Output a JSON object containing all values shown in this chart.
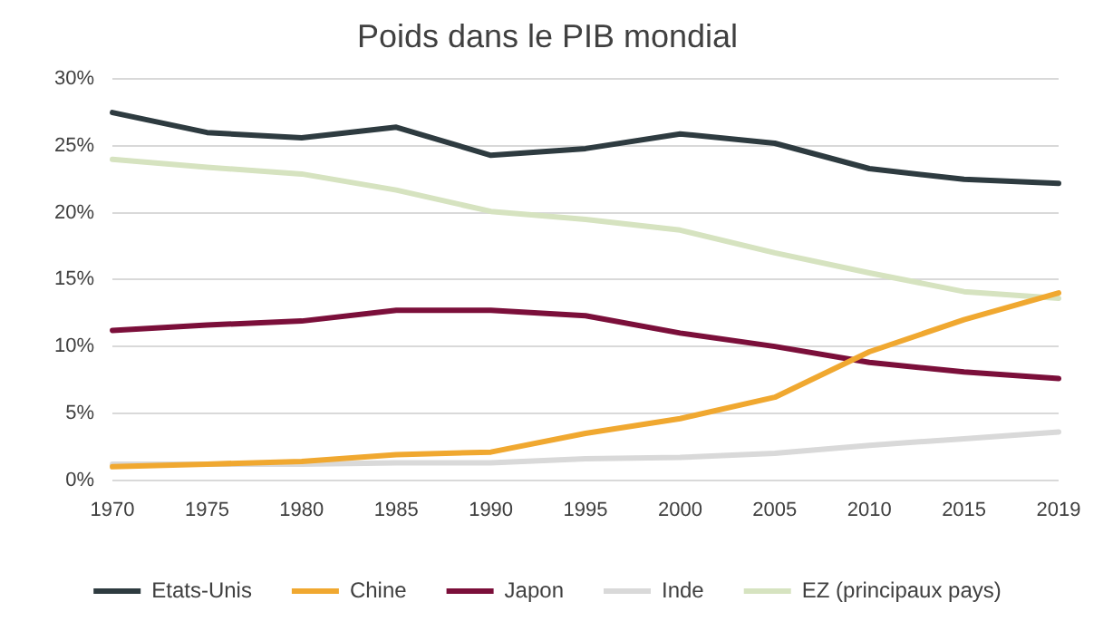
{
  "chart_data": {
    "type": "line",
    "title": "Poids dans le PIB mondial",
    "categories": [
      "1970",
      "1975",
      "1980",
      "1985",
      "1990",
      "1995",
      "2000",
      "2005",
      "2010",
      "2015",
      "2019"
    ],
    "series": [
      {
        "name": "Etats-Unis",
        "color": "#2e3b40",
        "values": [
          27.5,
          26.0,
          25.6,
          26.4,
          24.3,
          24.8,
          25.9,
          25.2,
          23.3,
          22.5,
          22.2
        ]
      },
      {
        "name": "Chine",
        "color": "#f0a830",
        "values": [
          1.0,
          1.2,
          1.4,
          1.9,
          2.1,
          3.5,
          4.6,
          6.2,
          9.6,
          12.0,
          14.0
        ]
      },
      {
        "name": "Japon",
        "color": "#7b0f3a",
        "values": [
          11.2,
          11.6,
          11.9,
          12.7,
          12.7,
          12.3,
          11.0,
          10.0,
          8.8,
          8.1,
          7.6
        ]
      },
      {
        "name": "Inde",
        "color": "#d9d9d9",
        "values": [
          1.2,
          1.2,
          1.2,
          1.3,
          1.3,
          1.6,
          1.7,
          2.0,
          2.6,
          3.1,
          3.6
        ]
      },
      {
        "name": "EZ (principaux pays)",
        "color": "#d6e3c0",
        "values": [
          24.0,
          23.4,
          22.9,
          21.7,
          20.1,
          19.5,
          18.7,
          17.0,
          15.5,
          14.1,
          13.6
        ]
      }
    ],
    "ylim": [
      0,
      30
    ],
    "yticks": [
      {
        "value": 0,
        "label": "0%"
      },
      {
        "value": 5,
        "label": "5%"
      },
      {
        "value": 10,
        "label": "10%"
      },
      {
        "value": 15,
        "label": "15%"
      },
      {
        "value": 20,
        "label": "20%"
      },
      {
        "value": 25,
        "label": "25%"
      },
      {
        "value": 30,
        "label": "30%"
      }
    ],
    "grid": "y",
    "legend": "bottom",
    "marker": "none",
    "line_style": "solid"
  }
}
